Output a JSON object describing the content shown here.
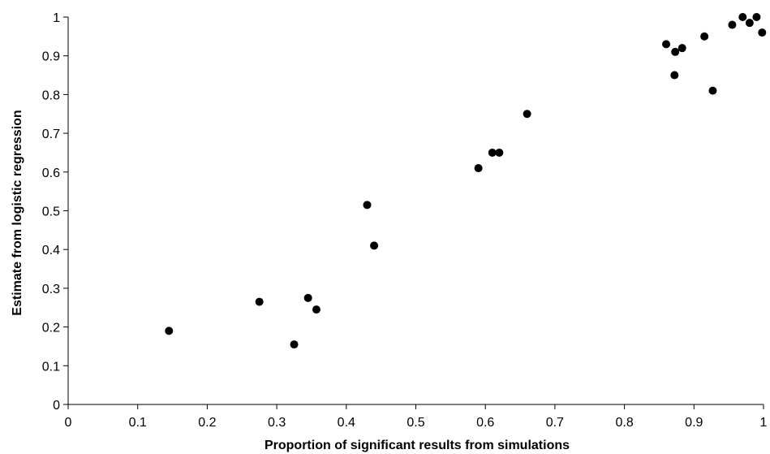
{
  "chart_data": {
    "type": "scatter",
    "title": "",
    "xlabel": "Proportion of significant results from simulations",
    "ylabel": "Estimate from logistic regression",
    "xlim": [
      0,
      1
    ],
    "ylim": [
      0,
      1
    ],
    "x_ticks": [
      "0",
      "0.1",
      "0.2",
      "0.3",
      "0.4",
      "0.5",
      "0.6",
      "0.7",
      "0.8",
      "0.9",
      "1"
    ],
    "y_ticks": [
      "0",
      "0.1",
      "0.2",
      "0.3",
      "0.4",
      "0.5",
      "0.6",
      "0.7",
      "0.8",
      "0.9",
      "1"
    ],
    "grid": false,
    "legend": "none",
    "marker_color": "#000000",
    "points": [
      {
        "x": 0.145,
        "y": 0.19
      },
      {
        "x": 0.275,
        "y": 0.265
      },
      {
        "x": 0.325,
        "y": 0.155
      },
      {
        "x": 0.345,
        "y": 0.275
      },
      {
        "x": 0.357,
        "y": 0.245
      },
      {
        "x": 0.43,
        "y": 0.515
      },
      {
        "x": 0.44,
        "y": 0.41
      },
      {
        "x": 0.59,
        "y": 0.61
      },
      {
        "x": 0.61,
        "y": 0.65
      },
      {
        "x": 0.62,
        "y": 0.65
      },
      {
        "x": 0.66,
        "y": 0.75
      },
      {
        "x": 0.86,
        "y": 0.93
      },
      {
        "x": 0.872,
        "y": 0.85
      },
      {
        "x": 0.873,
        "y": 0.91
      },
      {
        "x": 0.883,
        "y": 0.92
      },
      {
        "x": 0.915,
        "y": 0.95
      },
      {
        "x": 0.927,
        "y": 0.81
      },
      {
        "x": 0.955,
        "y": 0.98
      },
      {
        "x": 0.97,
        "y": 1.0
      },
      {
        "x": 0.98,
        "y": 0.985
      },
      {
        "x": 0.99,
        "y": 1.0
      },
      {
        "x": 0.998,
        "y": 0.96
      }
    ]
  }
}
